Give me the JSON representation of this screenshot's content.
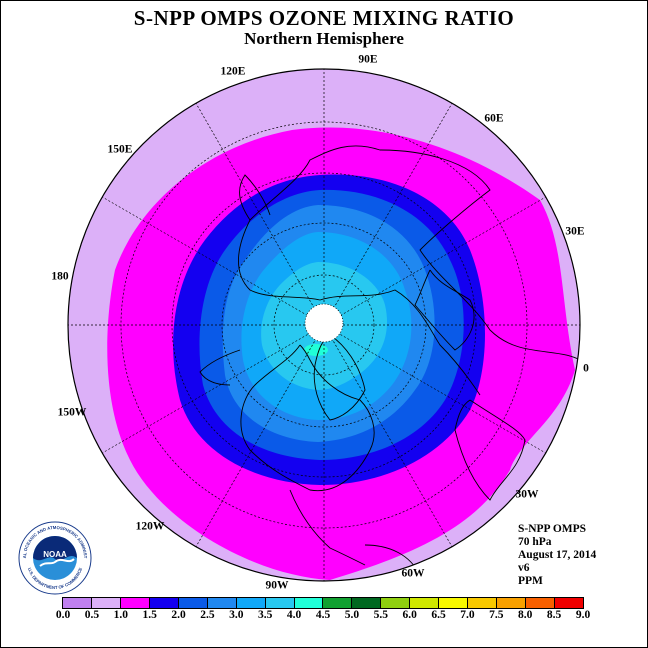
{
  "title": "S-NPP OMPS OZONE MIXING RATIO",
  "subtitle": "Northern Hemisphere",
  "longitude_labels": [
    "90E",
    "60E",
    "30E",
    "0",
    "30W",
    "60W",
    "90W",
    "120W",
    "150W",
    "180",
    "150E",
    "120E"
  ],
  "info": {
    "instrument": "S-NPP OMPS",
    "level": "70 hPa",
    "date": "August 17, 2014",
    "version": "v6",
    "units": "PPM"
  },
  "logo_text": {
    "top_arc": "NATIONAL OCEANIC AND ATMOSPHERIC ADMINISTRATION",
    "bottom_arc": "U.S. DEPARTMENT OF COMMERCE",
    "center": "NOAA"
  },
  "colorbar": {
    "ticks": [
      "0.0",
      "0.5",
      "1.0",
      "1.5",
      "2.0",
      "2.5",
      "3.0",
      "3.5",
      "4.0",
      "4.5",
      "5.0",
      "5.5",
      "6.0",
      "6.5",
      "7.0",
      "7.5",
      "8.0",
      "8.5",
      "9.0"
    ],
    "colors": [
      "#c080f0",
      "#dcb0f8",
      "#ff00ff",
      "#1400f0",
      "#0a5ae8",
      "#2088f0",
      "#10a8f8",
      "#28c8f0",
      "#20ffd8",
      "#10a030",
      "#006820",
      "#90d010",
      "#d0e800",
      "#f8f800",
      "#f8c800",
      "#f8a000",
      "#f86000",
      "#f00000",
      "#a05030"
    ]
  },
  "map_colors": {
    "outer": "#dcb0f8",
    "band_1_0": "#ff00ff",
    "band_1_5": "#1400f0",
    "band_2_0": "#0a5ae8",
    "band_2_5": "#2088f0",
    "band_3_0": "#10a8f8",
    "band_3_5": "#28c8f0",
    "band_4_0": "#20ffd8",
    "pole": "#ffffff"
  }
}
